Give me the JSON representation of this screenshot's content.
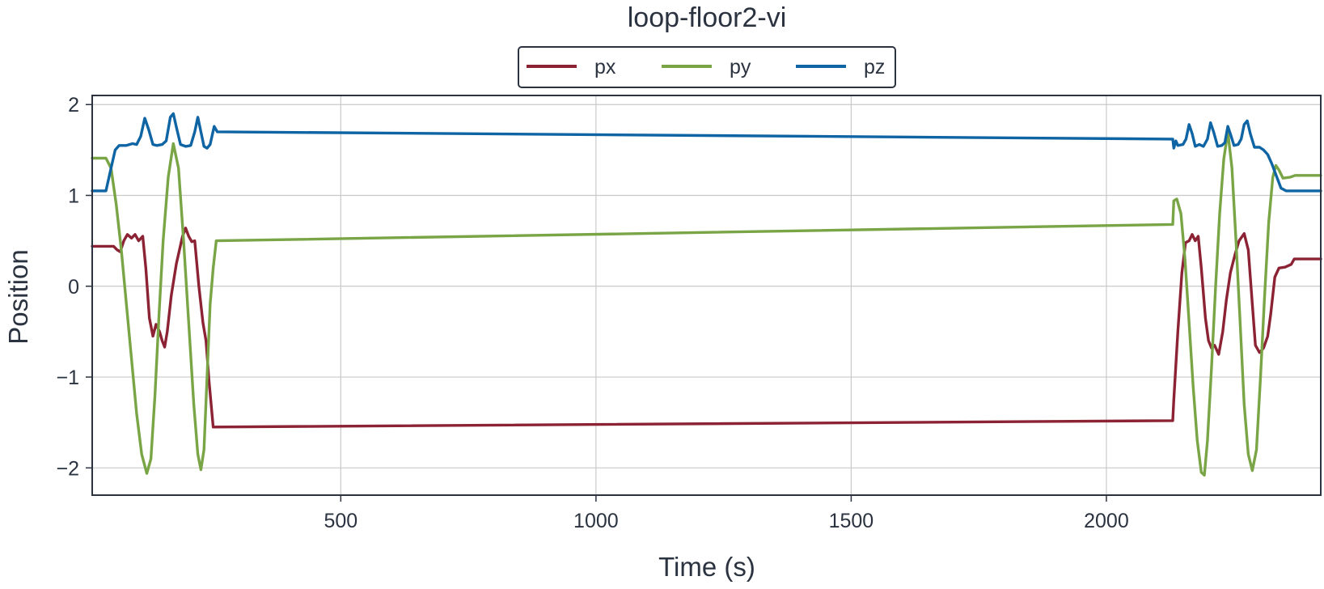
{
  "chart_data": {
    "type": "line",
    "title": "loop-floor2-vi",
    "xlabel": "Time (s)",
    "ylabel": "Position",
    "xlim": [
      13,
      2420
    ],
    "ylim": [
      -2.3,
      2.1
    ],
    "xticks": [
      500,
      1000,
      1500,
      2000
    ],
    "yticks": [
      2,
      1,
      0,
      -1,
      -2
    ],
    "ytick_labels": [
      "2",
      "1",
      "0",
      "−1",
      "−2"
    ],
    "grid": true,
    "legend": {
      "placement": "top-center",
      "entries": [
        "px",
        "py",
        "pz"
      ]
    },
    "colors": {
      "px": "#8b2334",
      "py": "#79a546",
      "pz": "#0f64a4"
    },
    "series": [
      {
        "name": "px",
        "color": "#8b2334",
        "points": [
          [
            13,
            0.44
          ],
          [
            40,
            0.44
          ],
          [
            55,
            0.44
          ],
          [
            62,
            0.4
          ],
          [
            68,
            0.38
          ],
          [
            75,
            0.5
          ],
          [
            82,
            0.57
          ],
          [
            90,
            0.53
          ],
          [
            97,
            0.57
          ],
          [
            104,
            0.5
          ],
          [
            112,
            0.55
          ],
          [
            118,
            0.2
          ],
          [
            125,
            -0.35
          ],
          [
            132,
            -0.55
          ],
          [
            138,
            -0.42
          ],
          [
            145,
            -0.5
          ],
          [
            150,
            -0.6
          ],
          [
            155,
            -0.67
          ],
          [
            160,
            -0.5
          ],
          [
            168,
            -0.1
          ],
          [
            178,
            0.25
          ],
          [
            190,
            0.55
          ],
          [
            196,
            0.64
          ],
          [
            202,
            0.55
          ],
          [
            208,
            0.49
          ],
          [
            214,
            0.5
          ],
          [
            222,
            0.0
          ],
          [
            230,
            -0.4
          ],
          [
            236,
            -0.6
          ],
          [
            242,
            -1.05
          ],
          [
            250,
            -1.55
          ],
          [
            2130,
            -1.48
          ],
          [
            2132,
            -1.25
          ],
          [
            2140,
            -0.5
          ],
          [
            2148,
            0.15
          ],
          [
            2155,
            0.48
          ],
          [
            2162,
            0.5
          ],
          [
            2168,
            0.57
          ],
          [
            2174,
            0.5
          ],
          [
            2180,
            0.55
          ],
          [
            2186,
            0.2
          ],
          [
            2194,
            -0.35
          ],
          [
            2200,
            -0.6
          ],
          [
            2206,
            -0.68
          ],
          [
            2212,
            -0.65
          ],
          [
            2220,
            -0.75
          ],
          [
            2228,
            -0.5
          ],
          [
            2235,
            -0.15
          ],
          [
            2243,
            0.15
          ],
          [
            2252,
            0.35
          ],
          [
            2260,
            0.5
          ],
          [
            2270,
            0.58
          ],
          [
            2278,
            0.4
          ],
          [
            2286,
            -0.2
          ],
          [
            2292,
            -0.65
          ],
          [
            2300,
            -0.73
          ],
          [
            2308,
            -0.68
          ],
          [
            2316,
            -0.55
          ],
          [
            2322,
            -0.3
          ],
          [
            2330,
            0.1
          ],
          [
            2338,
            0.2
          ],
          [
            2350,
            0.21
          ],
          [
            2362,
            0.24
          ],
          [
            2368,
            0.3
          ],
          [
            2420,
            0.3
          ]
        ]
      },
      {
        "name": "py",
        "color": "#79a546",
        "points": [
          [
            13,
            1.41
          ],
          [
            40,
            1.41
          ],
          [
            50,
            1.3
          ],
          [
            60,
            0.9
          ],
          [
            70,
            0.4
          ],
          [
            80,
            -0.2
          ],
          [
            90,
            -0.8
          ],
          [
            100,
            -1.4
          ],
          [
            110,
            -1.85
          ],
          [
            120,
            -2.06
          ],
          [
            128,
            -1.9
          ],
          [
            136,
            -1.2
          ],
          [
            144,
            -0.3
          ],
          [
            152,
            0.5
          ],
          [
            162,
            1.2
          ],
          [
            172,
            1.57
          ],
          [
            182,
            1.3
          ],
          [
            192,
            0.5
          ],
          [
            202,
            -0.4
          ],
          [
            212,
            -1.3
          ],
          [
            220,
            -1.85
          ],
          [
            226,
            -2.02
          ],
          [
            232,
            -1.8
          ],
          [
            238,
            -1.0
          ],
          [
            244,
            -0.2
          ],
          [
            250,
            0.2
          ],
          [
            256,
            0.5
          ],
          [
            2130,
            0.68
          ],
          [
            2132,
            0.94
          ],
          [
            2138,
            0.96
          ],
          [
            2146,
            0.8
          ],
          [
            2154,
            0.3
          ],
          [
            2162,
            -0.4
          ],
          [
            2170,
            -1.1
          ],
          [
            2178,
            -1.7
          ],
          [
            2186,
            -2.05
          ],
          [
            2192,
            -2.08
          ],
          [
            2198,
            -1.7
          ],
          [
            2206,
            -0.9
          ],
          [
            2214,
            0.0
          ],
          [
            2222,
            0.8
          ],
          [
            2230,
            1.4
          ],
          [
            2238,
            1.7
          ],
          [
            2246,
            1.3
          ],
          [
            2254,
            0.5
          ],
          [
            2262,
            -0.4
          ],
          [
            2270,
            -1.3
          ],
          [
            2278,
            -1.85
          ],
          [
            2286,
            -2.03
          ],
          [
            2294,
            -1.8
          ],
          [
            2302,
            -1.0
          ],
          [
            2310,
            -0.1
          ],
          [
            2318,
            0.7
          ],
          [
            2326,
            1.2
          ],
          [
            2332,
            1.33
          ],
          [
            2338,
            1.28
          ],
          [
            2346,
            1.19
          ],
          [
            2360,
            1.2
          ],
          [
            2370,
            1.22
          ],
          [
            2420,
            1.22
          ]
        ]
      },
      {
        "name": "pz",
        "color": "#0f64a4",
        "points": [
          [
            13,
            1.05
          ],
          [
            40,
            1.05
          ],
          [
            50,
            1.3
          ],
          [
            58,
            1.5
          ],
          [
            66,
            1.55
          ],
          [
            80,
            1.55
          ],
          [
            92,
            1.57
          ],
          [
            100,
            1.56
          ],
          [
            108,
            1.65
          ],
          [
            116,
            1.85
          ],
          [
            124,
            1.72
          ],
          [
            132,
            1.56
          ],
          [
            140,
            1.55
          ],
          [
            150,
            1.56
          ],
          [
            158,
            1.6
          ],
          [
            166,
            1.86
          ],
          [
            172,
            1.9
          ],
          [
            178,
            1.75
          ],
          [
            186,
            1.56
          ],
          [
            196,
            1.54
          ],
          [
            206,
            1.55
          ],
          [
            214,
            1.7
          ],
          [
            220,
            1.86
          ],
          [
            226,
            1.7
          ],
          [
            232,
            1.54
          ],
          [
            238,
            1.52
          ],
          [
            244,
            1.56
          ],
          [
            252,
            1.76
          ],
          [
            258,
            1.7
          ],
          [
            2130,
            1.62
          ],
          [
            2132,
            1.52
          ],
          [
            2136,
            1.6
          ],
          [
            2140,
            1.55
          ],
          [
            2150,
            1.56
          ],
          [
            2156,
            1.62
          ],
          [
            2162,
            1.78
          ],
          [
            2168,
            1.68
          ],
          [
            2174,
            1.54
          ],
          [
            2182,
            1.56
          ],
          [
            2190,
            1.54
          ],
          [
            2198,
            1.62
          ],
          [
            2204,
            1.8
          ],
          [
            2210,
            1.7
          ],
          [
            2218,
            1.54
          ],
          [
            2226,
            1.55
          ],
          [
            2232,
            1.58
          ],
          [
            2238,
            1.76
          ],
          [
            2244,
            1.66
          ],
          [
            2250,
            1.55
          ],
          [
            2258,
            1.56
          ],
          [
            2264,
            1.62
          ],
          [
            2270,
            1.78
          ],
          [
            2276,
            1.82
          ],
          [
            2282,
            1.68
          ],
          [
            2290,
            1.53
          ],
          [
            2300,
            1.53
          ],
          [
            2308,
            1.5
          ],
          [
            2316,
            1.45
          ],
          [
            2324,
            1.35
          ],
          [
            2334,
            1.2
          ],
          [
            2342,
            1.08
          ],
          [
            2352,
            1.05
          ],
          [
            2420,
            1.05
          ]
        ]
      }
    ]
  }
}
